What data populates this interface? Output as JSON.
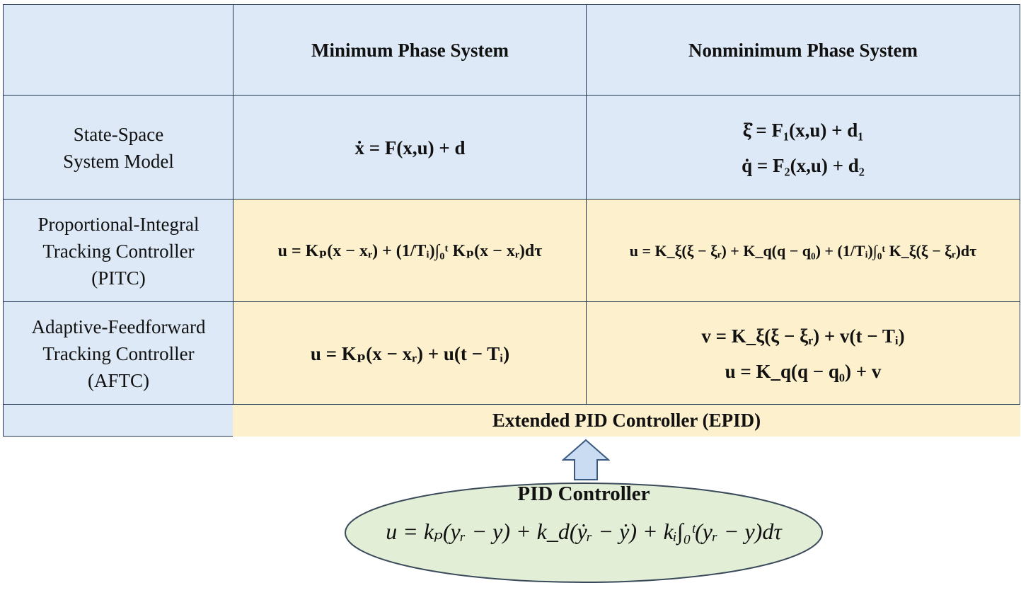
{
  "header": {
    "col1": "Minimum Phase System",
    "col2": "Nonminimum Phase System"
  },
  "rows": [
    {
      "label_lines": [
        "State-Space",
        "System Model"
      ],
      "min_phase": [
        "ẋ = F(x,u) + d"
      ],
      "nonmin_phase": [
        "ξ̇ = F₁(x,u) + d₁",
        "q̇ = F₂(x,u) + d₂"
      ]
    },
    {
      "label_lines": [
        "Proportional-Integral",
        "Tracking Controller",
        "(PITC)"
      ],
      "min_phase": [
        "u = Kₚ(x − xᵣ) + (1/Tᵢ)∫₀ᵗ Kₚ(x − xᵣ)dτ"
      ],
      "nonmin_phase": [
        "u = K_ξ(ξ − ξᵣ) + K_q(q − q₀) + (1/Tᵢ)∫₀ᵗ K_ξ(ξ − ξᵣ)dτ"
      ]
    },
    {
      "label_lines": [
        "Adaptive-Feedforward",
        "Tracking Controller",
        "(AFTC)"
      ],
      "min_phase": [
        "u = Kₚ(x − xᵣ) + u(t − Tᵢ)"
      ],
      "nonmin_phase": [
        "v = K_ξ(ξ − ξᵣ) + v(t − Tᵢ)",
        "u = K_q(q − q₀) + v"
      ]
    }
  ],
  "epid_label": "Extended PID Controller (EPID)",
  "pid": {
    "title": "PID Controller",
    "equation": "u = kₚ(yᵣ − y) + k_d(ẏᵣ − ẏ) + kᵢ∫₀ᵗ(yᵣ − y)dτ"
  },
  "colors": {
    "blue_cell": "#dde9f6",
    "yellow_cell": "#fdf0cc",
    "ellipse_fill": "#e3eed7",
    "arrow_fill": "#c9dcf1",
    "border": "#1f3552"
  }
}
